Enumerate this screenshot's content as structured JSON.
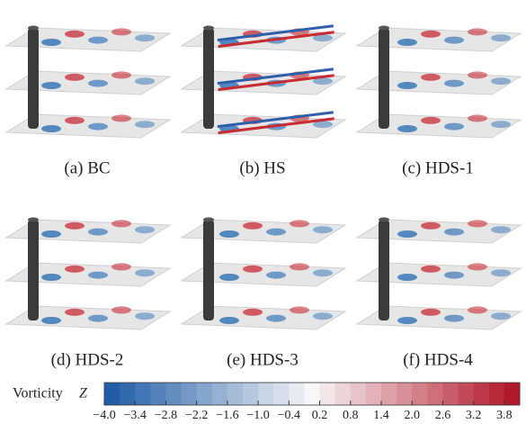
{
  "panels": [
    {
      "caption": "(a) BC"
    },
    {
      "caption": "(b) HS"
    },
    {
      "caption": "(c) HDS-1"
    },
    {
      "caption": "(d) HDS-2"
    },
    {
      "caption": "(e) HDS-3"
    },
    {
      "caption": "(f) HDS-4"
    }
  ],
  "colorbar": {
    "label": "Vorticity",
    "symbol": "Z",
    "lim": [
      -4.0,
      4.1
    ],
    "ticks": [
      {
        "value": -4.0,
        "label": "−4.0"
      },
      {
        "value": -3.4,
        "label": "−3.4"
      },
      {
        "value": -2.8,
        "label": "−2.8"
      },
      {
        "value": -2.2,
        "label": "−2.2"
      },
      {
        "value": -1.6,
        "label": "−1.6"
      },
      {
        "value": -1.0,
        "label": "−1.0"
      },
      {
        "value": -0.4,
        "label": "−0.4"
      },
      0.2,
      0.8,
      1.4,
      {
        "value": 2.0,
        "label": "2.0"
      },
      2.6,
      3.2,
      3.8
    ]
  }
}
